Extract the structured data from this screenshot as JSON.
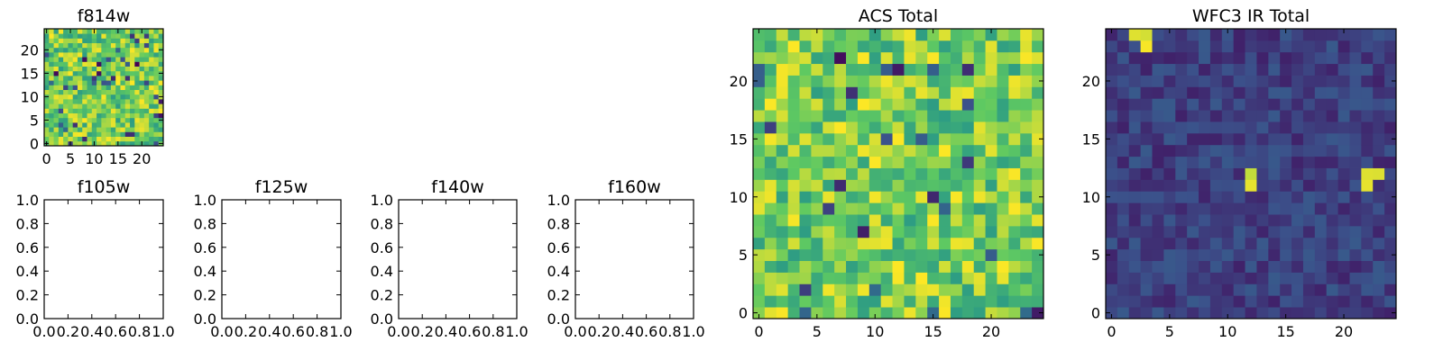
{
  "colormap": [
    "#440154",
    "#3b528b",
    "#21918c",
    "#5ec962",
    "#fde725"
  ],
  "chart_data": [
    {
      "id": "f814w",
      "type": "heatmap",
      "title": "f814w",
      "grid_size": 25,
      "xlim": [
        -0.5,
        24.5
      ],
      "ylim": [
        -0.5,
        24.5
      ],
      "xticks": [
        "0",
        "5",
        "10",
        "15",
        "20"
      ],
      "yticks": [
        "0",
        "5",
        "10",
        "15",
        "20"
      ],
      "style": "noise"
    },
    {
      "id": "f105w",
      "type": "heatmap",
      "title": "f105w",
      "empty": true,
      "xlim": [
        0,
        1
      ],
      "ylim": [
        0,
        1
      ],
      "xticks": [
        "0.0",
        "0.2",
        "0.4",
        "0.6",
        "0.8",
        "1.0"
      ],
      "yticks": [
        "0.0",
        "0.2",
        "0.4",
        "0.6",
        "0.8",
        "1.0"
      ]
    },
    {
      "id": "f125w",
      "type": "heatmap",
      "title": "f125w",
      "empty": true,
      "xlim": [
        0,
        1
      ],
      "ylim": [
        0,
        1
      ],
      "xticks": [
        "0.0",
        "0.2",
        "0.4",
        "0.6",
        "0.8",
        "1.0"
      ],
      "yticks": [
        "0.0",
        "0.2",
        "0.4",
        "0.6",
        "0.8",
        "1.0"
      ]
    },
    {
      "id": "f140w",
      "type": "heatmap",
      "title": "f140w",
      "empty": true,
      "xlim": [
        0,
        1
      ],
      "ylim": [
        0,
        1
      ],
      "xticks": [
        "0.0",
        "0.2",
        "0.4",
        "0.6",
        "0.8",
        "1.0"
      ],
      "yticks": [
        "0.0",
        "0.2",
        "0.4",
        "0.6",
        "0.8",
        "1.0"
      ]
    },
    {
      "id": "f160w",
      "type": "heatmap",
      "title": "f160w",
      "empty": true,
      "xlim": [
        0,
        1
      ],
      "ylim": [
        0,
        1
      ],
      "xticks": [
        "0.0",
        "0.2",
        "0.4",
        "0.6",
        "0.8",
        "1.0"
      ],
      "yticks": [
        "0.0",
        "0.2",
        "0.4",
        "0.6",
        "0.8",
        "1.0"
      ]
    },
    {
      "id": "acs-total",
      "type": "heatmap",
      "title": "ACS Total",
      "grid_size": 25,
      "xlim": [
        -0.5,
        24.5
      ],
      "ylim": [
        -0.5,
        24.5
      ],
      "xticks": [
        "0",
        "5",
        "10",
        "15",
        "20"
      ],
      "yticks": [
        "0",
        "5",
        "10",
        "15",
        "20"
      ],
      "style": "noise"
    },
    {
      "id": "wfc3-ir-total",
      "type": "heatmap",
      "title": "WFC3 IR Total",
      "grid_size": 25,
      "xlim": [
        -0.5,
        24.5
      ],
      "ylim": [
        -0.5,
        24.5
      ],
      "xticks": [
        "0",
        "5",
        "10",
        "15",
        "20"
      ],
      "yticks": [
        "0",
        "5",
        "10",
        "15",
        "20"
      ],
      "style": "sources",
      "bright_sources": [
        {
          "x": 2,
          "y": 24
        },
        {
          "x": 3,
          "y": 24
        },
        {
          "x": 3,
          "y": 23
        },
        {
          "x": 12,
          "y": 12
        },
        {
          "x": 12,
          "y": 11
        },
        {
          "x": 22,
          "y": 12
        },
        {
          "x": 23,
          "y": 12
        },
        {
          "x": 22,
          "y": 11
        }
      ]
    }
  ]
}
